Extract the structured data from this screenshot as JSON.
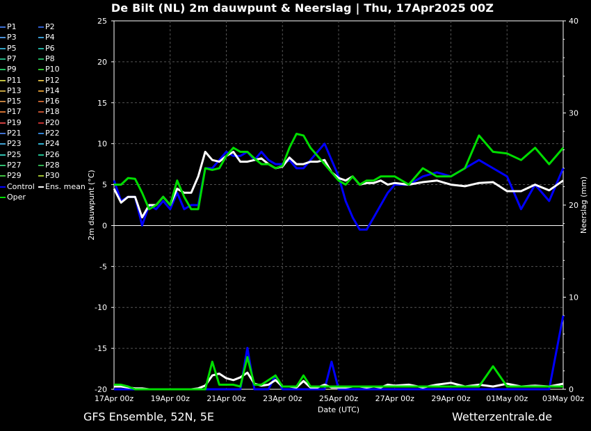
{
  "title": "De Bilt  (NL)  2m dauwpunt & Neerslag | Thu, 17Apr2025 00Z",
  "footer": {
    "left": "GFS Ensemble, 52N, 5E",
    "right": "Wetterzentrale.de"
  },
  "legend": [
    {
      "label": "P1",
      "color": "#3b6fd4"
    },
    {
      "label": "P2",
      "color": "#2f5fd0"
    },
    {
      "label": "P3",
      "color": "#4a8fd8"
    },
    {
      "label": "P4",
      "color": "#3a9ad0"
    },
    {
      "label": "P5",
      "color": "#30a0c0"
    },
    {
      "label": "P6",
      "color": "#20b0a0"
    },
    {
      "label": "P7",
      "color": "#20b080"
    },
    {
      "label": "P8",
      "color": "#20b060"
    },
    {
      "label": "P9",
      "color": "#20c060"
    },
    {
      "label": "P10",
      "color": "#30c030"
    },
    {
      "label": "P11",
      "color": "#c0c040"
    },
    {
      "label": "P12",
      "color": "#d0b040"
    },
    {
      "label": "P13",
      "color": "#c0a040"
    },
    {
      "label": "P14",
      "color": "#d09030"
    },
    {
      "label": "P15",
      "color": "#c08040"
    },
    {
      "label": "P16",
      "color": "#c06030"
    },
    {
      "label": "P17",
      "color": "#d07030"
    },
    {
      "label": "P18",
      "color": "#c05030"
    },
    {
      "label": "P19",
      "color": "#d04040"
    },
    {
      "label": "P20",
      "color": "#c03030"
    },
    {
      "label": "P21",
      "color": "#4070d0"
    },
    {
      "label": "P22",
      "color": "#3080d0"
    },
    {
      "label": "P23",
      "color": "#40a0d0"
    },
    {
      "label": "P24",
      "color": "#30b0d0"
    },
    {
      "label": "P25",
      "color": "#30c0b0"
    },
    {
      "label": "P26",
      "color": "#20c090"
    },
    {
      "label": "P27",
      "color": "#30c070"
    },
    {
      "label": "P28",
      "color": "#30b050"
    },
    {
      "label": "P29",
      "color": "#40c040"
    },
    {
      "label": "P30",
      "color": "#a0c030"
    },
    {
      "label": "Control",
      "color": "#0000ff"
    },
    {
      "label": "Ens. mean",
      "color": "#ffffff"
    },
    {
      "label": "Oper",
      "color": "#00dd00"
    }
  ],
  "chart_data": {
    "type": "line",
    "title": "De Bilt  (NL)  2m dauwpunt & Neerslag | Thu, 17Apr2025 00Z",
    "xlabel": "Date (UTC)",
    "ylabel": "2m dauwpunt (°C)",
    "y2label": "Neerslag (mm)",
    "ylim": [
      -20,
      25
    ],
    "y2lim": [
      0,
      40
    ],
    "yticks": [
      "25",
      "20",
      "15",
      "10",
      "5",
      "0",
      "-5",
      "-10",
      "-15",
      "-20"
    ],
    "y2ticks": [
      "40",
      "30",
      "20",
      "10",
      "0"
    ],
    "xlim": [
      0,
      384
    ],
    "xticks": [
      {
        "h": 0,
        "label": "17Apr 00z"
      },
      {
        "h": 48,
        "label": "19Apr 00z"
      },
      {
        "h": 96,
        "label": "21Apr 00z"
      },
      {
        "h": 144,
        "label": "23Apr 00z"
      },
      {
        "h": 192,
        "label": "25Apr 00z"
      },
      {
        "h": 240,
        "label": "27Apr 00z"
      },
      {
        "h": 288,
        "label": "29Apr 00z"
      },
      {
        "h": 336,
        "label": "01May 00z"
      },
      {
        "h": 384,
        "label": "03May 00z"
      }
    ],
    "x_hours": [
      0,
      6,
      12,
      18,
      24,
      30,
      36,
      42,
      48,
      54,
      60,
      66,
      72,
      78,
      84,
      90,
      96,
      102,
      108,
      114,
      120,
      126,
      132,
      138,
      144,
      150,
      156,
      162,
      168,
      174,
      180,
      186,
      192,
      198,
      204,
      210,
      216,
      222,
      228,
      234,
      240,
      252,
      264,
      276,
      288,
      300,
      312,
      324,
      336,
      348,
      360,
      372,
      384
    ],
    "dewpoint_series": [
      {
        "name": "Control",
        "color": "#0000ff",
        "values": [
          5.5,
          3,
          3.5,
          3.5,
          0,
          2.5,
          2,
          3,
          2,
          4,
          2,
          2.5,
          2.5,
          7,
          7,
          8,
          9,
          8.5,
          8.5,
          9,
          8,
          9,
          8,
          7.5,
          7.5,
          8,
          7,
          7,
          8,
          9,
          10,
          8,
          6,
          3,
          1,
          -0.5,
          -0.5,
          1,
          2.5,
          4,
          5,
          5,
          6,
          6.5,
          6,
          7,
          8,
          7,
          6,
          2,
          5,
          3,
          7
        ]
      },
      {
        "name": "Ens. mean",
        "color": "#ffffff",
        "values": [
          4.5,
          2.8,
          3.5,
          3.5,
          1,
          2.5,
          2.5,
          3.5,
          2.5,
          4.5,
          4,
          4,
          6,
          9,
          8,
          7.8,
          8.5,
          9,
          7.8,
          7.8,
          8,
          8.2,
          7.5,
          7,
          7.2,
          8.3,
          7.5,
          7.5,
          7.8,
          7.8,
          8,
          6.5,
          5.8,
          5.5,
          6,
          5,
          5.2,
          5.2,
          5.5,
          5,
          5.2,
          5,
          5.3,
          5.5,
          5,
          4.8,
          5.2,
          5.3,
          4.2,
          4.2,
          5,
          4.3,
          5.5
        ]
      },
      {
        "name": "Oper",
        "color": "#00dd00",
        "values": [
          5,
          5,
          5.8,
          5.7,
          4,
          2,
          2.5,
          3.5,
          2.5,
          5.5,
          3.5,
          2,
          2,
          7,
          6.8,
          7,
          8.5,
          9.5,
          9,
          9,
          8.2,
          7.5,
          7.5,
          7,
          7.3,
          9.5,
          11.2,
          11,
          9.5,
          8.5,
          7.5,
          6.5,
          5.5,
          5,
          6,
          5,
          5.5,
          5.5,
          6,
          6,
          6,
          5,
          7,
          6,
          6,
          7,
          11,
          9,
          8.8,
          8,
          9.5,
          7.5,
          9.5
        ]
      }
    ],
    "precip_series": [
      {
        "name": "Control",
        "color": "#0000ff",
        "values": [
          0,
          0,
          0,
          0,
          0,
          0,
          0,
          0,
          0,
          0,
          0,
          0,
          0,
          0,
          0,
          0,
          0,
          0,
          0,
          4.5,
          0,
          0,
          0,
          1.5,
          0,
          0,
          0,
          0,
          0,
          0,
          0,
          3,
          0,
          0,
          0,
          0,
          0,
          0,
          0,
          0,
          0,
          0,
          0,
          0,
          0,
          0,
          0,
          0,
          0,
          0,
          0,
          0,
          8
        ]
      },
      {
        "name": "Ens. mean",
        "color": "#ffffff",
        "values": [
          0.3,
          0.3,
          0.2,
          0.1,
          0.1,
          0,
          0,
          0,
          0,
          0,
          0,
          0,
          0.1,
          0.4,
          1.5,
          1.7,
          1.2,
          1,
          1.3,
          1.8,
          0.6,
          0.4,
          0.5,
          1,
          0.3,
          0.3,
          0.2,
          0.9,
          0.2,
          0.2,
          0.5,
          0.2,
          0.2,
          0.2,
          0.3,
          0.3,
          0.2,
          0.3,
          0.2,
          0.5,
          0.4,
          0.5,
          0.2,
          0.5,
          0.7,
          0.3,
          0.5,
          0.3,
          0.6,
          0.3,
          0.4,
          0.3,
          0.6
        ]
      },
      {
        "name": "Oper",
        "color": "#00dd00",
        "values": [
          0.5,
          0.5,
          0.3,
          0,
          0,
          0,
          0,
          0,
          0,
          0,
          0,
          0,
          0,
          0,
          3,
          0.5,
          0.5,
          0.5,
          0.3,
          3.5,
          0.5,
          0.5,
          1,
          1.5,
          0.3,
          0.3,
          0.3,
          1.5,
          0.3,
          0.3,
          0.3,
          0.3,
          0.3,
          0.3,
          0.3,
          0.3,
          0.3,
          0.3,
          0.3,
          0.3,
          0.3,
          0.3,
          0.3,
          0.3,
          0.3,
          0.3,
          0.3,
          2.5,
          0.3,
          0.3,
          0.3,
          0.3,
          0.3
        ]
      }
    ]
  }
}
